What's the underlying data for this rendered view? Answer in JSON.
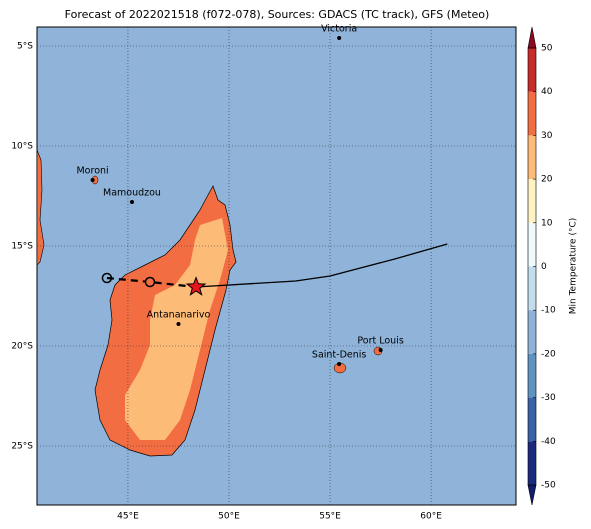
{
  "chart_data": {
    "type": "map",
    "title": "Forecast of 2022021518 (f072-078), Sources: GDACS (TC track), GFS (Meteo)",
    "xlim": [
      40.5,
      64.2
    ],
    "ylim": [
      -27.95,
      -4.05
    ],
    "xticks": [
      {
        "value": 45,
        "label": "45°E"
      },
      {
        "value": 50,
        "label": "50°E"
      },
      {
        "value": 55,
        "label": "55°E"
      },
      {
        "value": 60,
        "label": "60°E"
      }
    ],
    "yticks": [
      {
        "value": -5,
        "label": "5°S"
      },
      {
        "value": -10,
        "label": "10°S"
      },
      {
        "value": -15,
        "label": "15°S"
      },
      {
        "value": -20,
        "label": "20°S"
      },
      {
        "value": -25,
        "label": "25°S"
      }
    ],
    "grid": true,
    "track": {
      "past": {
        "x": [
          43.96,
          46.09,
          48.37
        ],
        "y": [
          -16.6,
          -16.8,
          -17.05
        ]
      },
      "future": {
        "x": [
          48.37,
          53.3,
          55.0,
          58.2,
          60.8
        ],
        "y": [
          -17.05,
          -16.75,
          -16.5,
          -15.65,
          -14.9
        ]
      }
    },
    "cities": [
      {
        "name": "Victoria",
        "lon": 55.45,
        "lat": -4.6
      },
      {
        "name": "Moroni",
        "lon": 43.25,
        "lat": -11.7
      },
      {
        "name": "Mamoudzou",
        "lon": 45.2,
        "lat": -12.8
      },
      {
        "name": "Antananarivo",
        "lon": 47.5,
        "lat": -18.9
      },
      {
        "name": "Port Louis",
        "lon": 57.5,
        "lat": -20.2
      },
      {
        "name": "Saint-Denis",
        "lon": 55.45,
        "lat": -20.9
      }
    ],
    "colorbar": {
      "label": "Min Temperature (°C)",
      "ticks": [
        -50,
        -40,
        -30,
        -20,
        -10,
        0,
        10,
        20,
        30,
        40,
        50
      ],
      "colors": [
        "#1c2a7e",
        "#3a62a6",
        "#5f93c2",
        "#8fb3d9",
        "#c3ddee",
        "#f0f9fb",
        "#fff3c4",
        "#fdbb78",
        "#f26d42",
        "#c92a2a"
      ],
      "extend_colors": [
        "#111d70",
        "#8e0a20"
      ]
    }
  }
}
